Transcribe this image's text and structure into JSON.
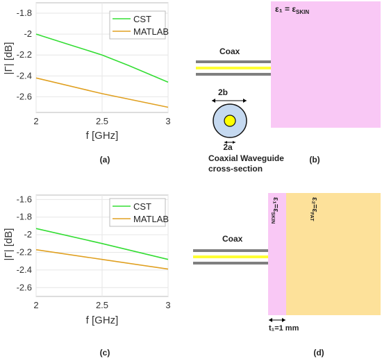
{
  "chart_data": [
    {
      "type": "line",
      "ylabel": "|Γ| [dB]",
      "xlabel": "f [GHz]",
      "xlim": [
        2,
        3
      ],
      "ylim": [
        -2.75,
        -1.7
      ],
      "xticks": [
        "2",
        "2.5",
        "3"
      ],
      "yticks": [
        "-1.8",
        "-2",
        "-2.2",
        "-2.4",
        "-2.6"
      ],
      "yticks_values": [
        -1.8,
        -2.0,
        -2.2,
        -2.4,
        -2.6
      ],
      "grid": true,
      "legend": "top-right",
      "series": [
        {
          "name": "CST",
          "color": "#33dd33",
          "x": [
            2,
            2.25,
            2.5,
            2.7,
            3
          ],
          "y": [
            -2.0,
            -2.1,
            -2.2,
            -2.3,
            -2.46
          ]
        },
        {
          "name": "MATLAB",
          "color": "#e0a020",
          "x": [
            2,
            2.5,
            3
          ],
          "y": [
            -2.42,
            -2.57,
            -2.7
          ]
        }
      ],
      "caption": "(a)"
    },
    {
      "type": "line",
      "ylabel": "|Γ| [dB]",
      "xlabel": "f [GHz]",
      "xlim": [
        2,
        3
      ],
      "ylim": [
        -2.7,
        -1.55
      ],
      "xticks": [
        "2",
        "2.5",
        "3"
      ],
      "yticks": [
        "-1.6",
        "-1.8",
        "-2",
        "-2.2",
        "-2.4",
        "-2.6"
      ],
      "yticks_values": [
        -1.6,
        -1.8,
        -2.0,
        -2.2,
        -2.4,
        -2.6
      ],
      "grid": true,
      "legend": "top-right",
      "series": [
        {
          "name": "CST",
          "color": "#33dd33",
          "x": [
            2,
            2.5,
            3
          ],
          "y": [
            -1.93,
            -2.1,
            -2.28
          ]
        },
        {
          "name": "MATLAB",
          "color": "#e0a020",
          "x": [
            2,
            2.5,
            3
          ],
          "y": [
            -2.17,
            -2.28,
            -2.39
          ]
        }
      ],
      "caption": "(c)"
    }
  ],
  "diagram_b": {
    "eps_label": "ε₁ = ε",
    "eps_sub": "SKIN",
    "coax_label": "Coax",
    "dim_2b": "2b",
    "dim_2a": "2a",
    "section_line1": "Coaxial Waveguide",
    "section_line2": "cross-section",
    "caption": "(b)",
    "skin_color": "#f9c8f5"
  },
  "diagram_d": {
    "eps1_main": "ε₁=ε",
    "eps1_sub": "SKIN",
    "eps2_main": "ε₂=ε",
    "eps2_sub": "FAT",
    "coax_label": "Coax",
    "thickness": "t₁=1 mm",
    "caption": "(d)",
    "fat_color": "#fde19a"
  }
}
